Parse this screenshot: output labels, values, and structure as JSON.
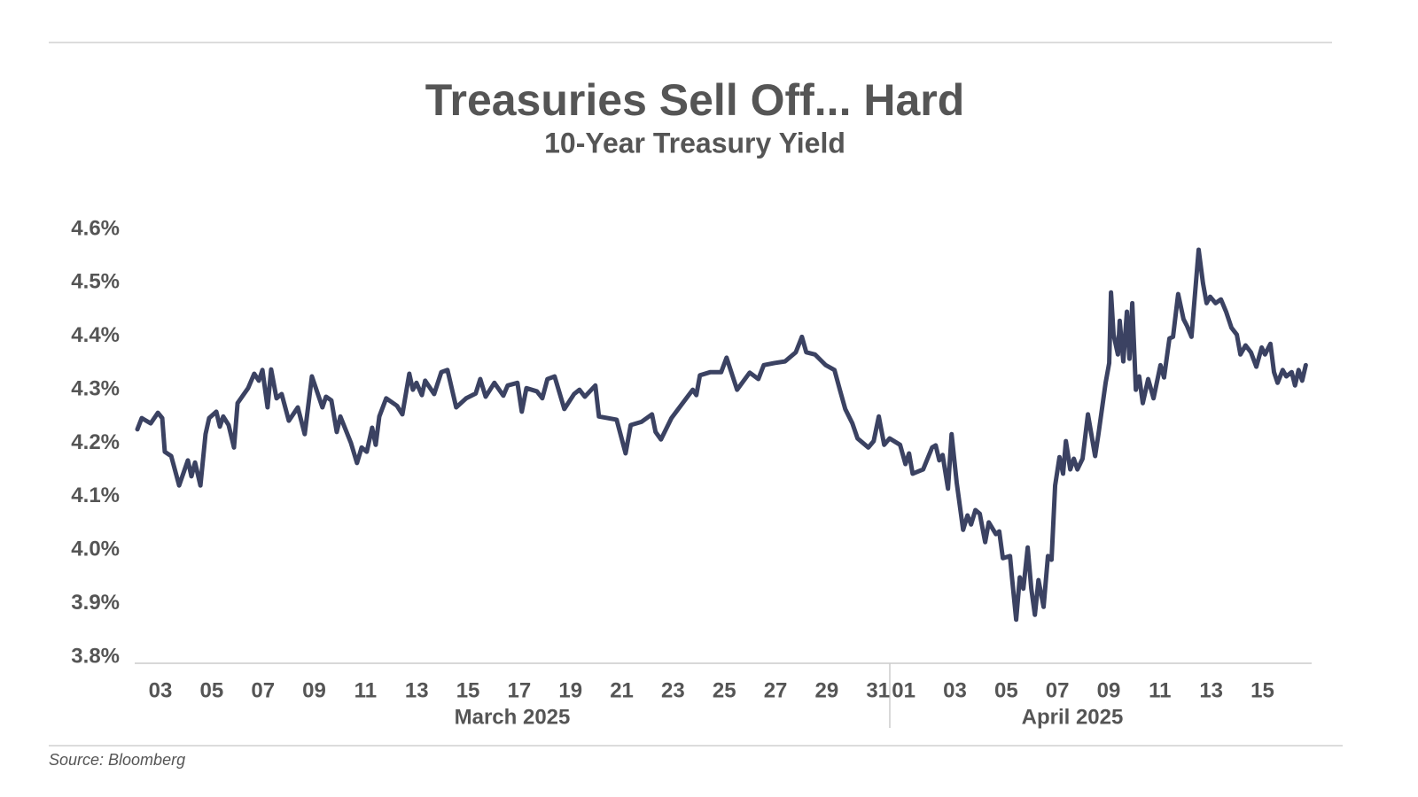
{
  "chart_data": {
    "type": "line",
    "title": "Treasuries Sell Off... Hard",
    "subtitle": "10-Year Treasury Yield",
    "x_group_labels": [
      "March 2025",
      "April 2025"
    ],
    "source": "Source: Bloomberg",
    "color": "#3b4262",
    "grid": false,
    "xlim": [
      2.1,
      47.85
    ],
    "ylim": [
      3.8,
      4.6
    ],
    "yticks": [
      {
        "value": 3.8,
        "label": "3.8%"
      },
      {
        "value": 3.9,
        "label": "3.9%"
      },
      {
        "value": 4.0,
        "label": "4.0%"
      },
      {
        "value": 4.1,
        "label": "4.1%"
      },
      {
        "value": 4.2,
        "label": "4.2%"
      },
      {
        "value": 4.3,
        "label": "4.3%"
      },
      {
        "value": 4.4,
        "label": "4.4%"
      },
      {
        "value": 4.5,
        "label": "4.5%"
      },
      {
        "value": 4.6,
        "label": "4.6%"
      }
    ],
    "xticks": [
      {
        "value": 3,
        "label": "03"
      },
      {
        "value": 5,
        "label": "05"
      },
      {
        "value": 7,
        "label": "07"
      },
      {
        "value": 9,
        "label": "09"
      },
      11,
      13,
      15,
      17,
      19,
      21,
      23,
      25,
      27,
      29,
      31,
      {
        "value": 32,
        "label": "01"
      },
      {
        "value": 34,
        "label": "03"
      },
      {
        "value": 36,
        "label": "05"
      },
      {
        "value": 38,
        "label": "07"
      },
      {
        "value": 40,
        "label": "09"
      },
      {
        "value": 42,
        "label": "11"
      },
      {
        "value": 44,
        "label": "13"
      },
      {
        "value": 46,
        "label": "15"
      }
    ],
    "x": [
      2.1,
      2.27,
      2.62,
      2.9,
      3.07,
      3.17,
      3.42,
      3.73,
      4.07,
      4.21,
      4.35,
      4.56,
      4.76,
      4.9,
      5.18,
      5.32,
      5.45,
      5.66,
      5.87,
      6.01,
      6.42,
      6.66,
      6.84,
      6.98,
      7.18,
      7.32,
      7.53,
      7.73,
      8.01,
      8.36,
      8.63,
      8.91,
      9.32,
      9.46,
      9.67,
      9.88,
      10.02,
      10.43,
      10.67,
      10.85,
      11.05,
      11.26,
      11.4,
      11.54,
      11.81,
      12.23,
      12.44,
      12.71,
      12.85,
      12.99,
      13.2,
      13.33,
      13.68,
      13.96,
      14.2,
      14.54,
      14.93,
      15.3,
      15.48,
      15.69,
      16.03,
      16.38,
      16.55,
      16.93,
      17.1,
      17.28,
      17.69,
      17.9,
      18.1,
      18.38,
      18.76,
      19.14,
      19.35,
      19.56,
      19.97,
      20.11,
      20.8,
      21.15,
      21.35,
      21.77,
      22.18,
      22.32,
      22.53,
      22.94,
      23.36,
      23.77,
      23.91,
      24.05,
      24.46,
      24.88,
      25.09,
      25.5,
      25.99,
      26.33,
      26.54,
      26.96,
      27.37,
      27.79,
      28.03,
      28.2,
      28.54,
      28.96,
      29.3,
      29.51,
      29.72,
      30.0,
      30.2,
      30.62,
      30.83,
      31.03,
      31.24,
      31.45,
      31.86,
      32.07,
      32.21,
      32.35,
      32.76,
      33.11,
      33.25,
      33.39,
      33.52,
      33.73,
      33.87,
      34.07,
      34.32,
      34.49,
      34.63,
      34.8,
      34.97,
      35.18,
      35.32,
      35.6,
      35.73,
      35.87,
      36.15,
      36.22,
      36.39,
      36.53,
      36.67,
      36.84,
      36.98,
      37.12,
      37.26,
      37.46,
      37.63,
      37.77,
      37.91,
      38.08,
      38.22,
      38.33,
      38.5,
      38.64,
      38.78,
      38.98,
      39.19,
      39.47,
      39.6,
      39.88,
      40.02,
      40.09,
      40.19,
      40.36,
      40.43,
      40.57,
      40.71,
      40.81,
      40.92,
      41.06,
      41.19,
      41.33,
      41.54,
      41.75,
      42.02,
      42.16,
      42.37,
      42.51,
      42.71,
      42.92,
      43.06,
      43.23,
      43.51,
      43.68,
      43.82,
      43.96,
      44.17,
      44.38,
      44.58,
      44.79,
      45.0,
      45.14,
      45.34,
      45.55,
      45.76,
      45.97,
      46.1,
      46.31,
      46.45,
      46.59,
      46.79,
      46.93,
      47.14,
      47.27,
      47.41,
      47.55,
      47.69
    ],
    "values": [
      4.226,
      4.247,
      4.237,
      4.257,
      4.247,
      4.184,
      4.176,
      4.121,
      4.168,
      4.138,
      4.164,
      4.121,
      4.217,
      4.247,
      4.259,
      4.231,
      4.25,
      4.234,
      4.192,
      4.275,
      4.303,
      4.33,
      4.317,
      4.337,
      4.267,
      4.338,
      4.284,
      4.292,
      4.242,
      4.267,
      4.217,
      4.325,
      4.267,
      4.287,
      4.28,
      4.221,
      4.25,
      4.201,
      4.163,
      4.192,
      4.184,
      4.229,
      4.197,
      4.25,
      4.284,
      4.27,
      4.254,
      4.33,
      4.3,
      4.313,
      4.29,
      4.317,
      4.292,
      4.333,
      4.337,
      4.267,
      4.284,
      4.293,
      4.32,
      4.287,
      4.313,
      4.289,
      4.308,
      4.313,
      4.259,
      4.303,
      4.297,
      4.284,
      4.32,
      4.325,
      4.264,
      4.292,
      4.3,
      4.287,
      4.308,
      4.25,
      4.244,
      4.181,
      4.234,
      4.24,
      4.254,
      4.221,
      4.207,
      4.247,
      4.274,
      4.3,
      4.29,
      4.327,
      4.333,
      4.333,
      4.36,
      4.3,
      4.332,
      4.32,
      4.346,
      4.35,
      4.353,
      4.37,
      4.399,
      4.37,
      4.366,
      4.346,
      4.337,
      4.3,
      4.264,
      4.237,
      4.209,
      4.192,
      4.204,
      4.25,
      4.197,
      4.209,
      4.197,
      4.161,
      4.181,
      4.143,
      4.151,
      4.192,
      4.196,
      4.168,
      4.178,
      4.115,
      4.217,
      4.126,
      4.038,
      4.065,
      4.048,
      4.075,
      4.068,
      4.015,
      4.052,
      4.03,
      4.035,
      3.985,
      3.989,
      3.952,
      3.87,
      3.949,
      3.928,
      4.005,
      3.928,
      3.879,
      3.944,
      3.894,
      3.989,
      3.982,
      4.121,
      4.174,
      4.143,
      4.204,
      4.151,
      4.171,
      4.151,
      4.171,
      4.254,
      4.176,
      4.217,
      4.313,
      4.35,
      4.482,
      4.403,
      4.366,
      4.429,
      4.353,
      4.446,
      4.358,
      4.462,
      4.3,
      4.325,
      4.275,
      4.32,
      4.284,
      4.346,
      4.323,
      4.396,
      4.399,
      4.479,
      4.432,
      4.419,
      4.399,
      4.562,
      4.499,
      4.462,
      4.474,
      4.462,
      4.469,
      4.446,
      4.416,
      4.403,
      4.366,
      4.383,
      4.37,
      4.343,
      4.379,
      4.366,
      4.386,
      4.333,
      4.313,
      4.337,
      4.325,
      4.333,
      4.308,
      4.337,
      4.317,
      4.346
    ]
  }
}
